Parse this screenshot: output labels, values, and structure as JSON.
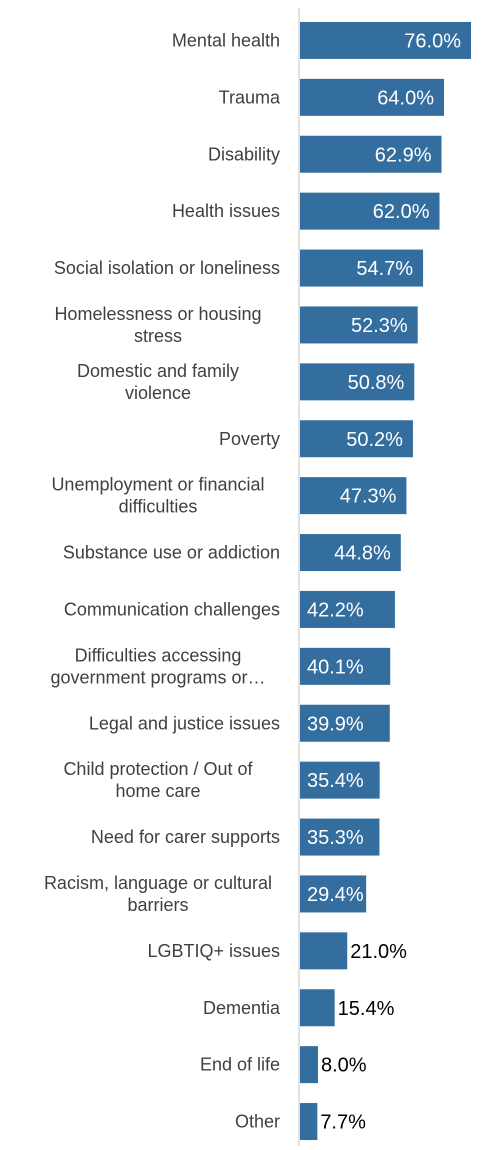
{
  "chart_data": {
    "type": "bar",
    "orientation": "horizontal",
    "title": "",
    "xlabel": "",
    "ylabel": "",
    "xlim": [
      0,
      100
    ],
    "grid": false,
    "legend": "none",
    "colors": {
      "bar": "#336E9F",
      "axis": "#D9D9D9",
      "label_text": "#404040",
      "value_inside": "#FFFFFF",
      "value_outside": "#000000"
    },
    "categories": [
      [
        "Mental health"
      ],
      [
        "Trauma"
      ],
      [
        "Disability"
      ],
      [
        "Health issues"
      ],
      [
        "Social isolation or loneliness"
      ],
      [
        "Homelessness or housing",
        "stress"
      ],
      [
        "Domestic and family",
        "violence"
      ],
      [
        "Poverty"
      ],
      [
        "Unemployment or financial",
        "difficulties"
      ],
      [
        "Substance use or addiction"
      ],
      [
        "Communication challenges"
      ],
      [
        "Difficulties accessing",
        "government programs or…"
      ],
      [
        "Legal and justice issues"
      ],
      [
        "Child protection / Out of",
        "home care"
      ],
      [
        "Need for carer supports"
      ],
      [
        "Racism, language or cultural",
        "barriers"
      ],
      [
        "LGBTIQ+ issues"
      ],
      [
        "Dementia"
      ],
      [
        "End of life"
      ],
      [
        "Other"
      ]
    ],
    "values": [
      76.0,
      64.0,
      62.9,
      62.0,
      54.7,
      52.3,
      50.8,
      50.2,
      47.3,
      44.8,
      42.2,
      40.1,
      39.9,
      35.4,
      35.3,
      29.4,
      21.0,
      15.4,
      8.0,
      7.7
    ],
    "value_labels": [
      "76.0%",
      "64.0%",
      "62.9%",
      "62.0%",
      "54.7%",
      "52.3%",
      "50.8%",
      "50.2%",
      "47.3%",
      "44.8%",
      "42.2%",
      "40.1%",
      "39.9%",
      "35.4%",
      "35.3%",
      "29.4%",
      "21.0%",
      "15.4%",
      "8.0%",
      "7.7%"
    ]
  }
}
